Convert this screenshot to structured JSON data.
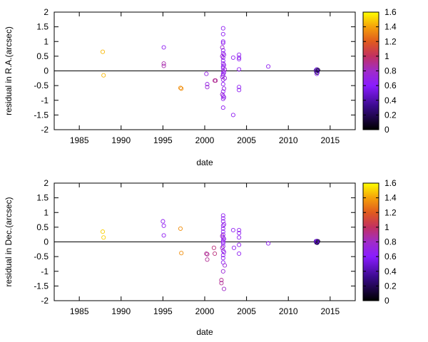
{
  "chart_data": [
    {
      "type": "scatter",
      "xlabel": "date",
      "ylabel": "residual in R.A.(arcsec)",
      "xlim": [
        1982,
        2018
      ],
      "ylim": [
        -2,
        2
      ],
      "xticks": [
        1985,
        1990,
        1995,
        2000,
        2005,
        2010,
        2015
      ],
      "yticks": [
        2,
        1.5,
        1,
        0.5,
        0,
        -0.5,
        -1,
        -1.5,
        -2
      ],
      "marker": "open-circle",
      "zero_line": true,
      "colorbar": {
        "min": 0,
        "max": 1.6,
        "ticks": [
          1.6,
          1.4,
          1.2,
          1,
          0.8,
          0.6,
          0.4,
          0.2,
          0
        ]
      },
      "points": [
        {
          "x": 1987.8,
          "y": 0.65,
          "c": 1.45
        },
        {
          "x": 1987.9,
          "y": -0.15,
          "c": 1.45
        },
        {
          "x": 1995.1,
          "y": 0.8,
          "c": 0.65
        },
        {
          "x": 1995.1,
          "y": 0.25,
          "c": 0.85
        },
        {
          "x": 1995.1,
          "y": 0.17,
          "c": 0.85
        },
        {
          "x": 1997.1,
          "y": -0.58,
          "c": 1.35
        },
        {
          "x": 1997.2,
          "y": -0.6,
          "c": 1.35
        },
        {
          "x": 2000.2,
          "y": -0.1,
          "c": 0.7
        },
        {
          "x": 2000.3,
          "y": -0.45,
          "c": 0.7
        },
        {
          "x": 2000.3,
          "y": -0.55,
          "c": 0.75
        },
        {
          "x": 2001.2,
          "y": -0.33,
          "c": 0.9
        },
        {
          "x": 2001.3,
          "y": -0.33,
          "c": 0.9
        },
        {
          "x": 2002.1,
          "y": 0.8,
          "c": 0.8
        },
        {
          "x": 2002.1,
          "y": 0.5,
          "c": 0.8
        },
        {
          "x": 2002.1,
          "y": -0.2,
          "c": 0.8
        },
        {
          "x": 2002.1,
          "y": -0.8,
          "c": 0.8
        },
        {
          "x": 2002.2,
          "y": 1.45,
          "c": 0.65
        },
        {
          "x": 2002.2,
          "y": 1.25,
          "c": 0.65
        },
        {
          "x": 2002.2,
          "y": 1.0,
          "c": 0.65
        },
        {
          "x": 2002.2,
          "y": 0.95,
          "c": 0.65
        },
        {
          "x": 2002.2,
          "y": 0.7,
          "c": 0.65
        },
        {
          "x": 2002.2,
          "y": 0.6,
          "c": 0.65
        },
        {
          "x": 2002.2,
          "y": 0.45,
          "c": 0.65
        },
        {
          "x": 2002.2,
          "y": 0.35,
          "c": 0.65
        },
        {
          "x": 2002.2,
          "y": 0.25,
          "c": 0.65
        },
        {
          "x": 2002.2,
          "y": 0.15,
          "c": 0.65
        },
        {
          "x": 2002.2,
          "y": 0.1,
          "c": 0.65
        },
        {
          "x": 2002.2,
          "y": 0.0,
          "c": 0.65
        },
        {
          "x": 2002.2,
          "y": -0.1,
          "c": 0.65
        },
        {
          "x": 2002.2,
          "y": -0.15,
          "c": 0.65
        },
        {
          "x": 2002.2,
          "y": -0.3,
          "c": 0.65
        },
        {
          "x": 2002.2,
          "y": -0.45,
          "c": 0.65
        },
        {
          "x": 2002.2,
          "y": -0.7,
          "c": 0.65
        },
        {
          "x": 2002.2,
          "y": -0.85,
          "c": 0.65
        },
        {
          "x": 2002.2,
          "y": -0.95,
          "c": 0.65
        },
        {
          "x": 2002.2,
          "y": -1.25,
          "c": 0.65
        },
        {
          "x": 2002.3,
          "y": 0.55,
          "c": 0.7
        },
        {
          "x": 2002.3,
          "y": 0.2,
          "c": 0.7
        },
        {
          "x": 2002.3,
          "y": -0.05,
          "c": 0.7
        },
        {
          "x": 2002.3,
          "y": -0.6,
          "c": 0.7
        },
        {
          "x": 2002.3,
          "y": -0.9,
          "c": 0.7
        },
        {
          "x": 2002.4,
          "y": 0.05,
          "c": 0.75
        },
        {
          "x": 2002.4,
          "y": -0.25,
          "c": 0.75
        },
        {
          "x": 2003.4,
          "y": 0.45,
          "c": 0.65
        },
        {
          "x": 2003.4,
          "y": -1.5,
          "c": 0.65
        },
        {
          "x": 2004.1,
          "y": 0.55,
          "c": 0.65
        },
        {
          "x": 2004.1,
          "y": 0.45,
          "c": 0.65
        },
        {
          "x": 2004.1,
          "y": 0.4,
          "c": 0.65
        },
        {
          "x": 2004.1,
          "y": 0.05,
          "c": 0.65
        },
        {
          "x": 2004.1,
          "y": -0.55,
          "c": 0.65
        },
        {
          "x": 2004.1,
          "y": -0.65,
          "c": 0.65
        },
        {
          "x": 2007.6,
          "y": 0.15,
          "c": 0.65
        },
        {
          "x": 2013.3,
          "y": 0.02,
          "c": 0.35
        },
        {
          "x": 2013.35,
          "y": -0.03,
          "c": 0.2
        },
        {
          "x": 2013.4,
          "y": 0.05,
          "c": 0.5
        },
        {
          "x": 2013.45,
          "y": -0.06,
          "c": 0.15
        },
        {
          "x": 2013.5,
          "y": 0.0,
          "c": 0.4
        },
        {
          "x": 2013.4,
          "y": -0.1,
          "c": 0.6
        },
        {
          "x": 2013.55,
          "y": 0.03,
          "c": 0.1
        },
        {
          "x": 2013.45,
          "y": 0.01,
          "c": 0.3
        }
      ]
    },
    {
      "type": "scatter",
      "xlabel": "date",
      "ylabel": "residual in Dec.(arcsec)",
      "xlim": [
        1982,
        2018
      ],
      "ylim": [
        -2,
        2
      ],
      "xticks": [
        1985,
        1990,
        1995,
        2000,
        2005,
        2010,
        2015
      ],
      "yticks": [
        2,
        1.5,
        1,
        0.5,
        0,
        -0.5,
        -1,
        -1.5,
        -2
      ],
      "marker": "open-circle",
      "zero_line": true,
      "colorbar": {
        "min": 0,
        "max": 1.6,
        "ticks": [
          1.6,
          1.4,
          1.2,
          1,
          0.8,
          0.6,
          0.4,
          0.2,
          0
        ]
      },
      "points": [
        {
          "x": 1987.8,
          "y": 0.35,
          "c": 1.5
        },
        {
          "x": 1987.9,
          "y": 0.15,
          "c": 1.5
        },
        {
          "x": 1995.0,
          "y": 0.7,
          "c": 0.65
        },
        {
          "x": 1995.1,
          "y": 0.55,
          "c": 0.65
        },
        {
          "x": 1995.1,
          "y": 0.22,
          "c": 0.65
        },
        {
          "x": 1997.1,
          "y": 0.45,
          "c": 1.35
        },
        {
          "x": 1997.2,
          "y": -0.38,
          "c": 1.35
        },
        {
          "x": 2000.2,
          "y": -0.4,
          "c": 0.9
        },
        {
          "x": 2000.3,
          "y": -0.42,
          "c": 0.9
        },
        {
          "x": 2000.3,
          "y": -0.6,
          "c": 0.9
        },
        {
          "x": 2001.1,
          "y": -0.2,
          "c": 0.95
        },
        {
          "x": 2001.2,
          "y": -0.4,
          "c": 0.95
        },
        {
          "x": 2002.0,
          "y": -1.3,
          "c": 0.9
        },
        {
          "x": 2002.0,
          "y": -1.4,
          "c": 0.9
        },
        {
          "x": 2002.1,
          "y": 0.2,
          "c": 0.85
        },
        {
          "x": 2002.1,
          "y": -0.2,
          "c": 0.85
        },
        {
          "x": 2002.2,
          "y": 0.9,
          "c": 0.65
        },
        {
          "x": 2002.2,
          "y": 0.8,
          "c": 0.65
        },
        {
          "x": 2002.2,
          "y": 0.7,
          "c": 0.65
        },
        {
          "x": 2002.2,
          "y": 0.55,
          "c": 0.65
        },
        {
          "x": 2002.2,
          "y": 0.45,
          "c": 0.65
        },
        {
          "x": 2002.2,
          "y": 0.35,
          "c": 0.65
        },
        {
          "x": 2002.2,
          "y": 0.25,
          "c": 0.65
        },
        {
          "x": 2002.2,
          "y": 0.15,
          "c": 0.65
        },
        {
          "x": 2002.2,
          "y": 0.05,
          "c": 0.65
        },
        {
          "x": 2002.2,
          "y": 0.0,
          "c": 0.65
        },
        {
          "x": 2002.2,
          "y": -0.05,
          "c": 0.65
        },
        {
          "x": 2002.2,
          "y": -0.15,
          "c": 0.65
        },
        {
          "x": 2002.2,
          "y": -0.3,
          "c": 0.65
        },
        {
          "x": 2002.2,
          "y": -0.45,
          "c": 0.65
        },
        {
          "x": 2002.2,
          "y": -0.55,
          "c": 0.65
        },
        {
          "x": 2002.2,
          "y": -0.7,
          "c": 0.65
        },
        {
          "x": 2002.2,
          "y": -1.0,
          "c": 0.75
        },
        {
          "x": 2002.3,
          "y": -1.6,
          "c": 0.8
        },
        {
          "x": 2002.3,
          "y": 0.6,
          "c": 0.7
        },
        {
          "x": 2002.3,
          "y": 0.1,
          "c": 0.7
        },
        {
          "x": 2002.3,
          "y": -0.35,
          "c": 0.7
        },
        {
          "x": 2002.4,
          "y": -0.8,
          "c": 0.75
        },
        {
          "x": 2003.4,
          "y": 0.4,
          "c": 0.65
        },
        {
          "x": 2003.5,
          "y": -0.2,
          "c": 0.65
        },
        {
          "x": 2004.1,
          "y": 0.4,
          "c": 0.65
        },
        {
          "x": 2004.1,
          "y": 0.3,
          "c": 0.65
        },
        {
          "x": 2004.1,
          "y": 0.15,
          "c": 0.65
        },
        {
          "x": 2004.1,
          "y": -0.1,
          "c": 0.65
        },
        {
          "x": 2004.1,
          "y": -0.4,
          "c": 0.65
        },
        {
          "x": 2007.6,
          "y": -0.05,
          "c": 0.65
        },
        {
          "x": 2013.3,
          "y": 0.02,
          "c": 0.35
        },
        {
          "x": 2013.35,
          "y": -0.02,
          "c": 0.2
        },
        {
          "x": 2013.4,
          "y": 0.03,
          "c": 0.5
        },
        {
          "x": 2013.45,
          "y": -0.03,
          "c": 0.15
        },
        {
          "x": 2013.5,
          "y": 0.0,
          "c": 0.4
        },
        {
          "x": 2013.4,
          "y": 0.01,
          "c": 0.6
        },
        {
          "x": 2013.55,
          "y": 0.02,
          "c": 0.1
        },
        {
          "x": 2013.45,
          "y": -0.01,
          "c": 0.3
        }
      ]
    }
  ]
}
